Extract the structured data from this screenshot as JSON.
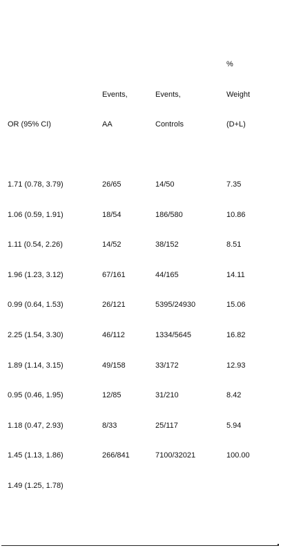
{
  "chart_data": {
    "type": "table",
    "columns": [
      {
        "key": "or",
        "lines": [
          "",
          "",
          "OR (95% CI)"
        ]
      },
      {
        "key": "aa",
        "lines": [
          "",
          "Events,",
          "AA"
        ]
      },
      {
        "key": "ctrl",
        "lines": [
          "",
          "Events,",
          "Controls"
        ]
      },
      {
        "key": "wt",
        "lines": [
          "%",
          "Weight",
          "(D+L)"
        ]
      }
    ],
    "rows": [
      {
        "or": "1.71 (0.78, 3.79)",
        "aa": "26/65",
        "ctrl": "14/50",
        "wt": "7.35"
      },
      {
        "or": "1.06 (0.59, 1.91)",
        "aa": "18/54",
        "ctrl": "186/580",
        "wt": "10.86"
      },
      {
        "or": "1.11 (0.54, 2.26)",
        "aa": "14/52",
        "ctrl": "38/152",
        "wt": "8.51"
      },
      {
        "or": "1.96 (1.23, 3.12)",
        "aa": "67/161",
        "ctrl": "44/165",
        "wt": "14.11"
      },
      {
        "or": "0.99 (0.64, 1.53)",
        "aa": "26/121",
        "ctrl": "5395/24930",
        "wt": "15.06"
      },
      {
        "or": "2.25 (1.54, 3.30)",
        "aa": "46/112",
        "ctrl": "1334/5645",
        "wt": "16.82"
      },
      {
        "or": "1.89 (1.14, 3.15)",
        "aa": "49/158",
        "ctrl": "33/172",
        "wt": "12.93"
      },
      {
        "or": "0.95 (0.46, 1.95)",
        "aa": "12/85",
        "ctrl": "31/210",
        "wt": "8.42"
      },
      {
        "or": "1.18 (0.47, 2.93)",
        "aa": "8/33",
        "ctrl": "25/117",
        "wt": "5.94"
      },
      {
        "or": "1.45 (1.13, 1.86)",
        "aa": "266/841",
        "ctrl": "7100/32021",
        "wt": "100.00"
      },
      {
        "or": "1.49 (1.25, 1.78)",
        "aa": "",
        "ctrl": "",
        "wt": ""
      }
    ]
  }
}
